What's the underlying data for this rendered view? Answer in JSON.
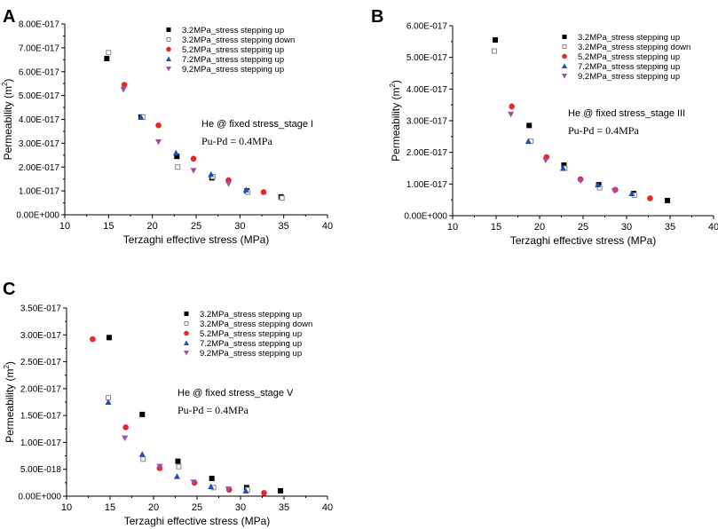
{
  "chart_data": [
    {
      "panel_label": "A",
      "type": "scatter",
      "xlabel": "Terzaghi effective stress (MPa)",
      "ylabel": "Permeability (m",
      "ylabel_sup": "2",
      "ylabel_close": ")",
      "xlim": [
        10,
        40
      ],
      "ylim": [
        0,
        8e-17
      ],
      "x_ticks": [
        10,
        15,
        20,
        25,
        30,
        35,
        40
      ],
      "x_tick_labels": [
        "10",
        "15",
        "20",
        "25",
        "30",
        "35",
        "40"
      ],
      "y_ticks": [
        0,
        1e-17,
        2e-17,
        3e-17,
        4e-17,
        5e-17,
        6e-17,
        7e-17,
        8e-17
      ],
      "y_tick_labels": [
        "0.00E+000",
        "1.00E-017",
        "2.00E-017",
        "3.00E-017",
        "4.00E-017",
        "5.00E-017",
        "6.00E-017",
        "7.00E-017",
        "8.00E-017"
      ],
      "annotation_line1": "He @ fixed stress_stage I",
      "annotation_line2": "Pu-Pd = 0.4MPa",
      "series": [
        {
          "name": "3.2MPa_stress stepping up",
          "marker": "square",
          "color": "#000000",
          "x": [
            14.8,
            18.7,
            22.8,
            26.8,
            30.8,
            34.7
          ],
          "y": [
            6.55e-17,
            4.1e-17,
            2.45e-17,
            1.55e-17,
            1e-17,
            7.5e-18
          ]
        },
        {
          "name": "3.2MPa_stress stepping down",
          "marker": "open-square",
          "color": "#888888",
          "x": [
            15.0,
            18.9,
            22.9,
            26.9,
            30.9,
            34.8
          ],
          "y": [
            6.8e-17,
            4.1e-17,
            2e-17,
            1.6e-17,
            9.5e-18,
            7e-18
          ]
        },
        {
          "name": "5.2MPa_stress stepping up",
          "marker": "circle",
          "color": "#e8262b",
          "x": [
            16.8,
            20.7,
            24.7,
            28.7,
            32.7
          ],
          "y": [
            5.45e-17,
            3.75e-17,
            2.35e-17,
            1.45e-17,
            9.5e-18
          ]
        },
        {
          "name": "7.2MPa_stress stepping up",
          "marker": "triangle-up",
          "color": "#1f4fa8",
          "x": [
            18.7,
            22.7,
            26.7,
            30.7
          ],
          "y": [
            4.1e-17,
            2.6e-17,
            1.7e-17,
            1.05e-17
          ]
        },
        {
          "name": "9.2MPa_stress stepping up",
          "marker": "triangle-down",
          "color": "#a64ca6",
          "x": [
            16.7,
            20.7,
            24.7,
            28.7
          ],
          "y": [
            5.25e-17,
            3.05e-17,
            1.85e-17,
            1.3e-17
          ]
        }
      ]
    },
    {
      "panel_label": "B",
      "type": "scatter",
      "xlabel": "Terzaghi effective stress (MPa)",
      "ylabel": "Permeability (m",
      "ylabel_sup": "2",
      "ylabel_close": ")",
      "xlim": [
        10,
        40
      ],
      "ylim": [
        0,
        6e-17
      ],
      "x_ticks": [
        10,
        15,
        20,
        25,
        30,
        35,
        40
      ],
      "x_tick_labels": [
        "10",
        "15",
        "20",
        "25",
        "30",
        "35",
        "40"
      ],
      "y_ticks": [
        0,
        1e-17,
        2e-17,
        3e-17,
        4e-17,
        5e-17,
        6e-17
      ],
      "y_tick_labels": [
        "0.00E+000",
        "1.00E-017",
        "2.00E-017",
        "3.00E-017",
        "4.00E-017",
        "5.00E-017",
        "6.00E-017"
      ],
      "annotation_line1": "He @ fixed stress_stage III",
      "annotation_line2": "Pu-Pd = 0.4MPa",
      "series": [
        {
          "name": "3.2MPa_stress stepping up",
          "marker": "square",
          "color": "#000000",
          "x": [
            14.9,
            18.8,
            22.8,
            26.8,
            30.8,
            34.7
          ],
          "y": [
            5.55e-17,
            2.85e-17,
            1.6e-17,
            9.8e-18,
            7e-18,
            4.8e-18
          ]
        },
        {
          "name": "3.2MPa_stress stepping down",
          "marker": "open-square",
          "color": "#888888",
          "x": [
            14.8,
            19.0,
            22.9,
            26.9,
            30.9
          ],
          "y": [
            5.2e-17,
            2.35e-17,
            1.5e-17,
            8.8e-18,
            6.5e-18
          ]
        },
        {
          "name": "5.2MPa_stress stepping up",
          "marker": "circle",
          "color": "#e8262b",
          "x": [
            16.8,
            20.8,
            24.7,
            28.7,
            32.7
          ],
          "y": [
            3.45e-17,
            1.85e-17,
            1.15e-17,
            8.2e-18,
            5.5e-18
          ]
        },
        {
          "name": "7.2MPa_stress stepping up",
          "marker": "triangle-up",
          "color": "#1f4fa8",
          "x": [
            18.7,
            22.7,
            26.7,
            30.6
          ],
          "y": [
            2.35e-17,
            1.5e-17,
            9.8e-18,
            7e-18
          ]
        },
        {
          "name": "9.2MPa_stress stepping up",
          "marker": "triangle-down",
          "color": "#a64ca6",
          "x": [
            16.7,
            20.7,
            24.7,
            28.6
          ],
          "y": [
            3.2e-17,
            1.75e-17,
            1.1e-17,
            7.8e-18
          ]
        }
      ]
    },
    {
      "panel_label": "C",
      "type": "scatter",
      "xlabel": "Terzaghi effective stress (MPa)",
      "ylabel": "Permeability (m",
      "ylabel_sup": "2",
      "ylabel_close": ")",
      "xlim": [
        10,
        40
      ],
      "ylim": [
        0,
        3.5e-17
      ],
      "x_ticks": [
        10,
        15,
        20,
        25,
        30,
        35,
        40
      ],
      "x_tick_labels": [
        "10",
        "15",
        "20",
        "25",
        "30",
        "35",
        "40"
      ],
      "y_ticks": [
        0,
        5e-18,
        1e-17,
        1.5e-17,
        2e-17,
        2.5e-17,
        3e-17,
        3.5e-17
      ],
      "y_tick_labels": [
        "0.00E+000",
        "5.00E-018",
        "1.00E-017",
        "1.50E-017",
        "2.00E-017",
        "2.50E-017",
        "3.00E-017",
        "3.50E-017"
      ],
      "annotation_line1": "He @ fixed stress_stage V",
      "annotation_line2": "Pu-Pd = 0.4MPa",
      "series": [
        {
          "name": "3.2MPa_stress stepping up",
          "marker": "square",
          "color": "#000000",
          "x": [
            14.9,
            18.7,
            22.8,
            26.7,
            30.7,
            34.6
          ],
          "y": [
            2.95e-17,
            1.52e-17,
            6.5e-18,
            3.3e-18,
            1.6e-18,
            1e-18
          ]
        },
        {
          "name": "3.2MPa_stress stepping down",
          "marker": "open-square",
          "color": "#888888",
          "x": [
            14.8,
            18.8,
            22.9,
            26.9,
            30.8
          ],
          "y": [
            1.83e-17,
            6.9e-18,
            5.5e-18,
            1.6e-18,
            1.2e-18
          ]
        },
        {
          "name": "5.2MPa_stress stepping up",
          "marker": "circle",
          "color": "#e8262b",
          "x": [
            13.0,
            16.8,
            20.7,
            24.7,
            28.7,
            32.7
          ],
          "y": [
            2.92e-17,
            1.28e-17,
            5.2e-18,
            2.5e-18,
            1.2e-18,
            6e-19
          ]
        },
        {
          "name": "7.2MPa_stress stepping up",
          "marker": "triangle-up",
          "color": "#1f4fa8",
          "x": [
            14.8,
            18.7,
            22.7,
            26.6,
            30.6
          ],
          "y": [
            1.75e-17,
            7.8e-18,
            3.7e-18,
            1.8e-18,
            1e-18
          ]
        },
        {
          "name": "9.2MPa_stress stepping up",
          "marker": "triangle-down",
          "color": "#a64ca6",
          "x": [
            16.7,
            20.7,
            24.6,
            28.6
          ],
          "y": [
            1.08e-17,
            5.5e-18,
            2.6e-18,
            1.3e-18
          ]
        }
      ]
    }
  ]
}
